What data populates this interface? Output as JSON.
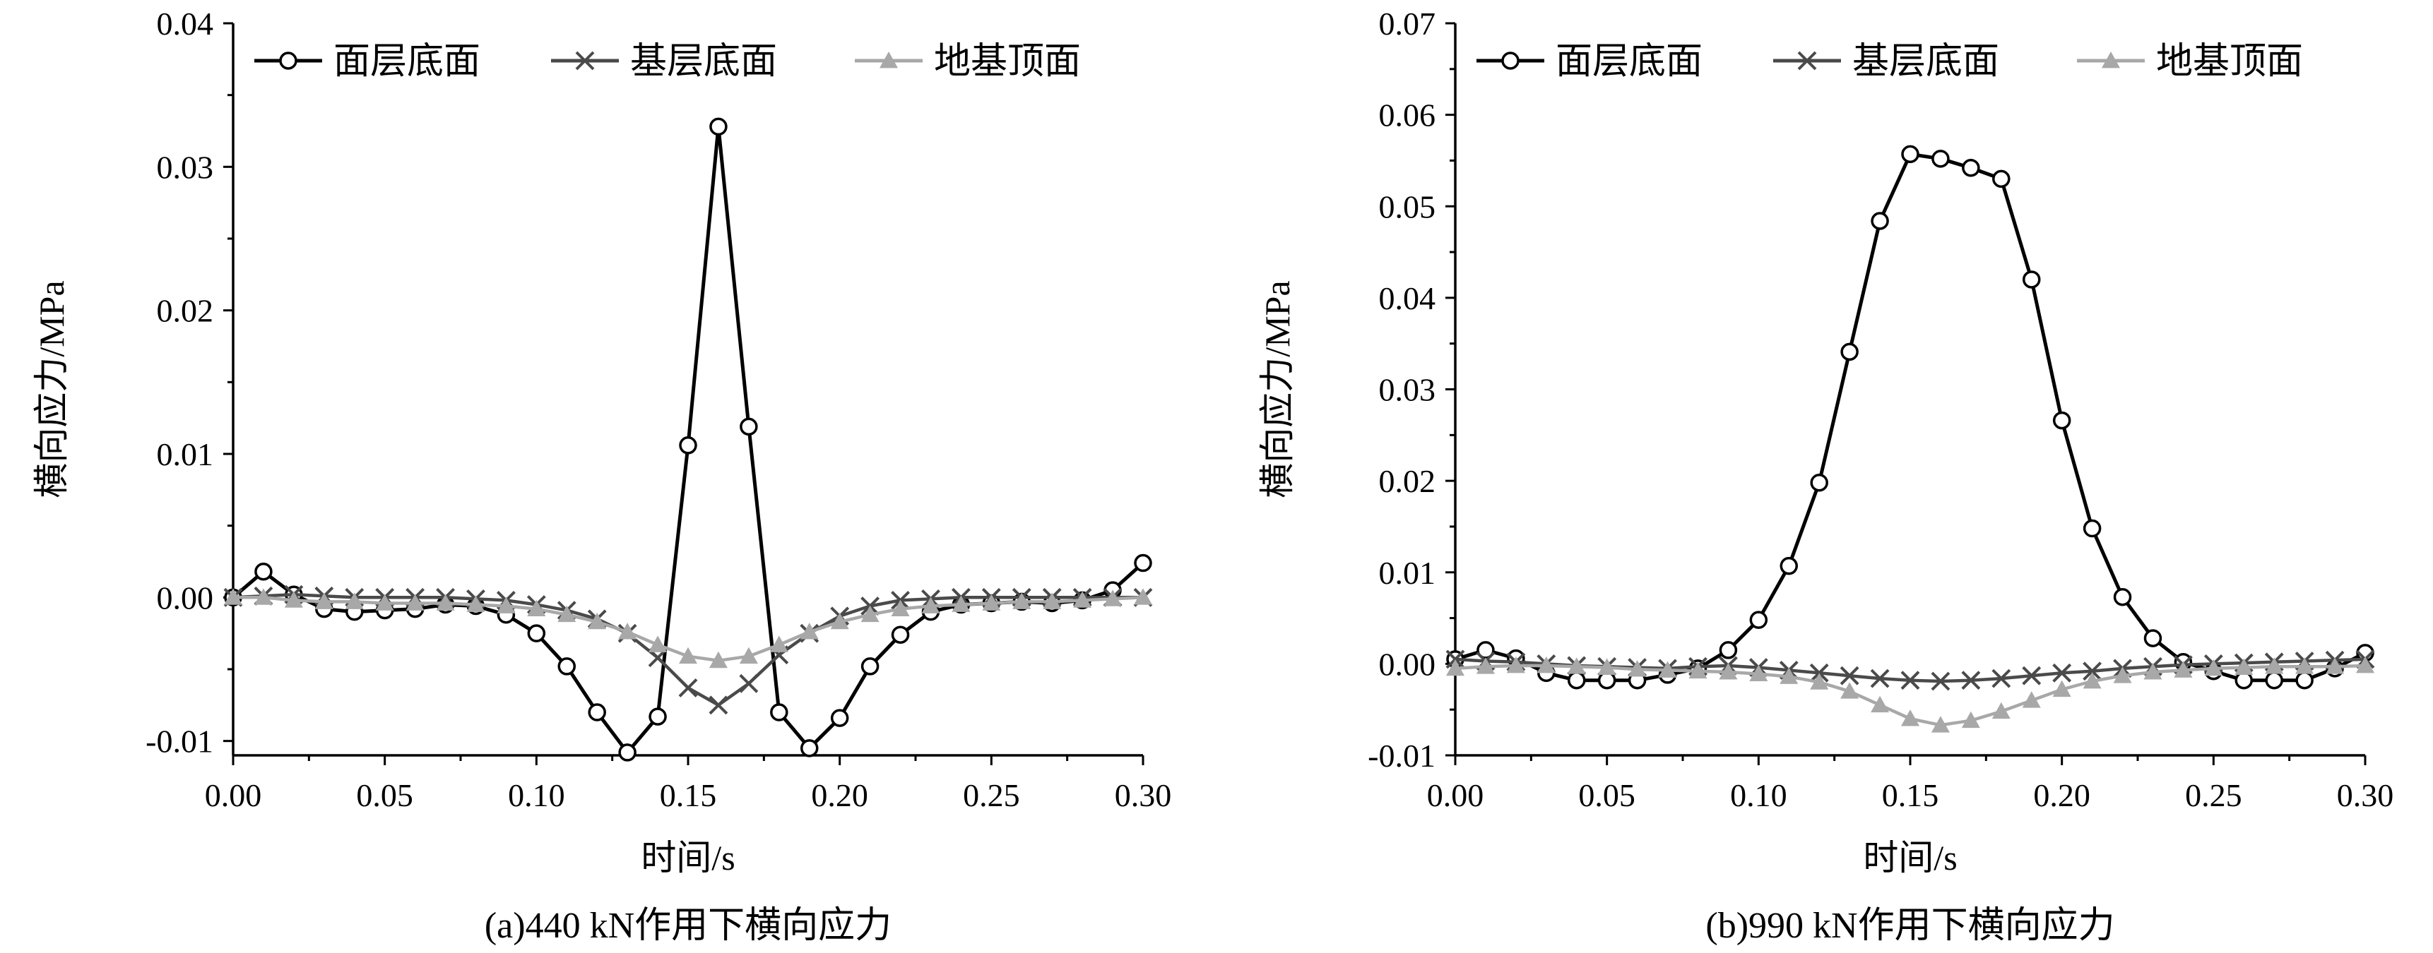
{
  "chart_data": [
    {
      "type": "line",
      "caption": "(a)440 kN作用下横向应力",
      "xlabel": "时间/s",
      "ylabel": "横向应力/MPa",
      "xlim": [
        0.0,
        0.3
      ],
      "ylim": [
        -0.011,
        0.04
      ],
      "xticks": [
        "0.00",
        "0.05",
        "0.10",
        "0.15",
        "0.20",
        "0.25",
        "0.30"
      ],
      "yticks": [
        "-0.01",
        "0.00",
        "0.01",
        "0.02",
        "0.03",
        "0.04"
      ],
      "legend_position": "top",
      "x": [
        0.0,
        0.01,
        0.02,
        0.03,
        0.04,
        0.05,
        0.06,
        0.07,
        0.08,
        0.09,
        0.1,
        0.11,
        0.12,
        0.13,
        0.14,
        0.15,
        0.16,
        0.17,
        0.18,
        0.19,
        0.2,
        0.21,
        0.22,
        0.23,
        0.24,
        0.25,
        0.26,
        0.27,
        0.28,
        0.29,
        0.3
      ],
      "series": [
        {
          "name": "面层底面",
          "marker": "circle",
          "color": "#000000",
          "values": [
            0.0,
            0.0018,
            0.0002,
            -0.0008,
            -0.001,
            -0.0009,
            -0.0008,
            -0.0005,
            -0.0006,
            -0.0012,
            -0.0025,
            -0.0048,
            -0.008,
            -0.0108,
            -0.0083,
            0.0106,
            0.0328,
            0.0119,
            -0.008,
            -0.0105,
            -0.0084,
            -0.0048,
            -0.0026,
            -0.001,
            -0.0005,
            -0.0004,
            -0.0003,
            -0.0004,
            -0.0002,
            0.0005,
            0.0024
          ]
        },
        {
          "name": "基层底面",
          "marker": "x",
          "color": "#4a4a4a",
          "values": [
            0.0,
            0.0001,
            0.0002,
            0.0001,
            0.0,
            0.0,
            0.0,
            0.0,
            -0.0001,
            -0.0002,
            -0.0005,
            -0.0009,
            -0.0015,
            -0.0025,
            -0.0042,
            -0.0063,
            -0.0075,
            -0.006,
            -0.004,
            -0.0025,
            -0.0013,
            -0.0006,
            -0.0002,
            -0.0001,
            0.0,
            0.0,
            0.0,
            0.0,
            0.0,
            0.0,
            0.0
          ]
        },
        {
          "name": "地基顶面",
          "marker": "triangle",
          "color": "#a8a8a8",
          "values": [
            0.0,
            0.0,
            -0.0002,
            -0.0003,
            -0.0003,
            -0.0004,
            -0.0004,
            -0.0004,
            -0.0005,
            -0.0006,
            -0.0008,
            -0.0012,
            -0.0017,
            -0.0024,
            -0.0033,
            -0.0041,
            -0.0044,
            -0.0041,
            -0.0033,
            -0.0024,
            -0.0017,
            -0.0012,
            -0.0008,
            -0.0006,
            -0.0005,
            -0.0004,
            -0.0003,
            -0.0003,
            -0.0002,
            -0.0001,
            0.0
          ]
        }
      ]
    },
    {
      "type": "line",
      "caption": "(b)990 kN作用下横向应力",
      "xlabel": "时间/s",
      "ylabel": "横向应力/MPa",
      "xlim": [
        0.0,
        0.3
      ],
      "ylim": [
        -0.01,
        0.07
      ],
      "xticks": [
        "0.00",
        "0.05",
        "0.10",
        "0.15",
        "0.20",
        "0.25",
        "0.30"
      ],
      "yticks": [
        "-0.01",
        "0.00",
        "0.01",
        "0.02",
        "0.03",
        "0.04",
        "0.05",
        "0.06",
        "0.07"
      ],
      "legend_position": "top",
      "x": [
        0.0,
        0.01,
        0.02,
        0.03,
        0.04,
        0.05,
        0.06,
        0.07,
        0.08,
        0.09,
        0.1,
        0.11,
        0.12,
        0.13,
        0.14,
        0.15,
        0.16,
        0.17,
        0.18,
        0.19,
        0.2,
        0.21,
        0.22,
        0.23,
        0.24,
        0.25,
        0.26,
        0.27,
        0.28,
        0.29,
        0.3
      ],
      "series": [
        {
          "name": "面层底面",
          "marker": "circle",
          "color": "#000000",
          "values": [
            0.0005,
            0.0015,
            0.0006,
            -0.001,
            -0.0018,
            -0.0018,
            -0.0018,
            -0.0012,
            -0.0005,
            0.0015,
            0.0048,
            0.0107,
            0.0198,
            0.0341,
            0.0484,
            0.0557,
            0.0552,
            0.0542,
            0.053,
            0.042,
            0.0266,
            0.0148,
            0.0073,
            0.0028,
            0.0002,
            -0.0008,
            -0.0018,
            -0.0018,
            -0.0018,
            -0.0005,
            0.0012
          ]
        },
        {
          "name": "基层底面",
          "marker": "x",
          "color": "#4a4a4a",
          "values": [
            0.0005,
            0.0003,
            0.0002,
            0.0,
            -0.0002,
            -0.0003,
            -0.0004,
            -0.0005,
            -0.0003,
            -0.0002,
            -0.0004,
            -0.0007,
            -0.001,
            -0.0013,
            -0.0016,
            -0.0018,
            -0.0019,
            -0.0018,
            -0.0016,
            -0.0013,
            -0.001,
            -0.0008,
            -0.0005,
            -0.0003,
            -0.0001,
            0.0,
            0.0001,
            0.0002,
            0.0003,
            0.0004,
            0.0005
          ]
        },
        {
          "name": "地基顶面",
          "marker": "triangle",
          "color": "#a8a8a8",
          "values": [
            -0.0005,
            -0.0003,
            -0.0002,
            -0.0002,
            -0.0003,
            -0.0004,
            -0.0006,
            -0.0007,
            -0.0008,
            -0.0009,
            -0.0011,
            -0.0014,
            -0.002,
            -0.003,
            -0.0045,
            -0.006,
            -0.0067,
            -0.0062,
            -0.0052,
            -0.004,
            -0.0028,
            -0.0019,
            -0.0013,
            -0.0009,
            -0.0007,
            -0.0005,
            -0.0004,
            -0.0003,
            -0.0003,
            -0.0003,
            -0.0002
          ]
        }
      ]
    }
  ]
}
